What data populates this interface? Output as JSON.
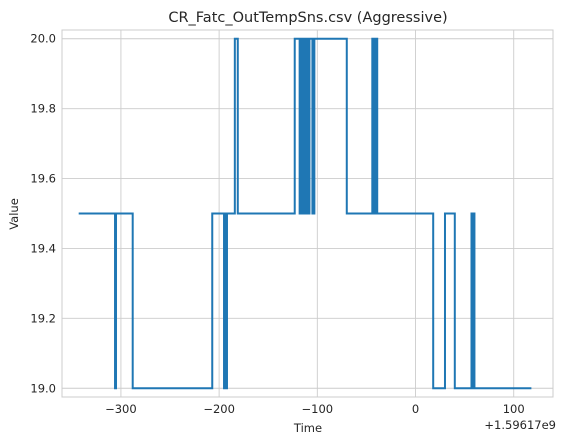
{
  "chart_data": {
    "type": "line",
    "title": "CR_Fatc_OutTempSns.csv (Aggressive)",
    "xlabel": "Time",
    "ylabel": "Value",
    "x_offset_label": "+1.59617e9",
    "xlim": [
      -360,
      140
    ],
    "ylim": [
      18.975,
      20.025
    ],
    "x_ticks": [
      -300,
      -200,
      -100,
      0,
      100
    ],
    "x_tick_labels": [
      "−300",
      "−200",
      "−100",
      "0",
      "100"
    ],
    "y_ticks": [
      19.0,
      19.2,
      19.4,
      19.6,
      19.8,
      20.0
    ],
    "y_tick_labels": [
      "19.0",
      "19.2",
      "19.4",
      "19.6",
      "19.8",
      "20.0"
    ],
    "grid": true,
    "step": "post",
    "series": [
      {
        "color": "#1f77b4",
        "x": [
          -343,
          -306,
          -305,
          -304,
          -288,
          -287,
          -207,
          -205,
          -195,
          -194,
          -193,
          -192,
          -184,
          -181,
          -178,
          -123,
          -118,
          -116,
          -114,
          -112,
          -110,
          -108,
          -105,
          -103,
          -102,
          -101,
          -70,
          -44,
          -43,
          -42,
          -41,
          -40,
          -39,
          -38,
          -37,
          -36,
          18,
          30,
          40,
          57,
          58,
          59,
          60,
          61,
          118
        ],
        "y": [
          19.5,
          19.0,
          19.5,
          19.5,
          19.0,
          19.0,
          19.5,
          19.5,
          19.0,
          19.5,
          19.0,
          19.5,
          20.0,
          19.5,
          19.5,
          20.0,
          19.5,
          20.0,
          19.5,
          20.0,
          19.5,
          20.0,
          19.5,
          20.0,
          20.0,
          20.0,
          19.5,
          20.0,
          19.5,
          20.0,
          19.5,
          20.0,
          19.5,
          19.5,
          19.5,
          19.5,
          19.0,
          19.5,
          19.0,
          19.5,
          19.0,
          19.5,
          19.0,
          19.0,
          19.0
        ]
      }
    ]
  }
}
